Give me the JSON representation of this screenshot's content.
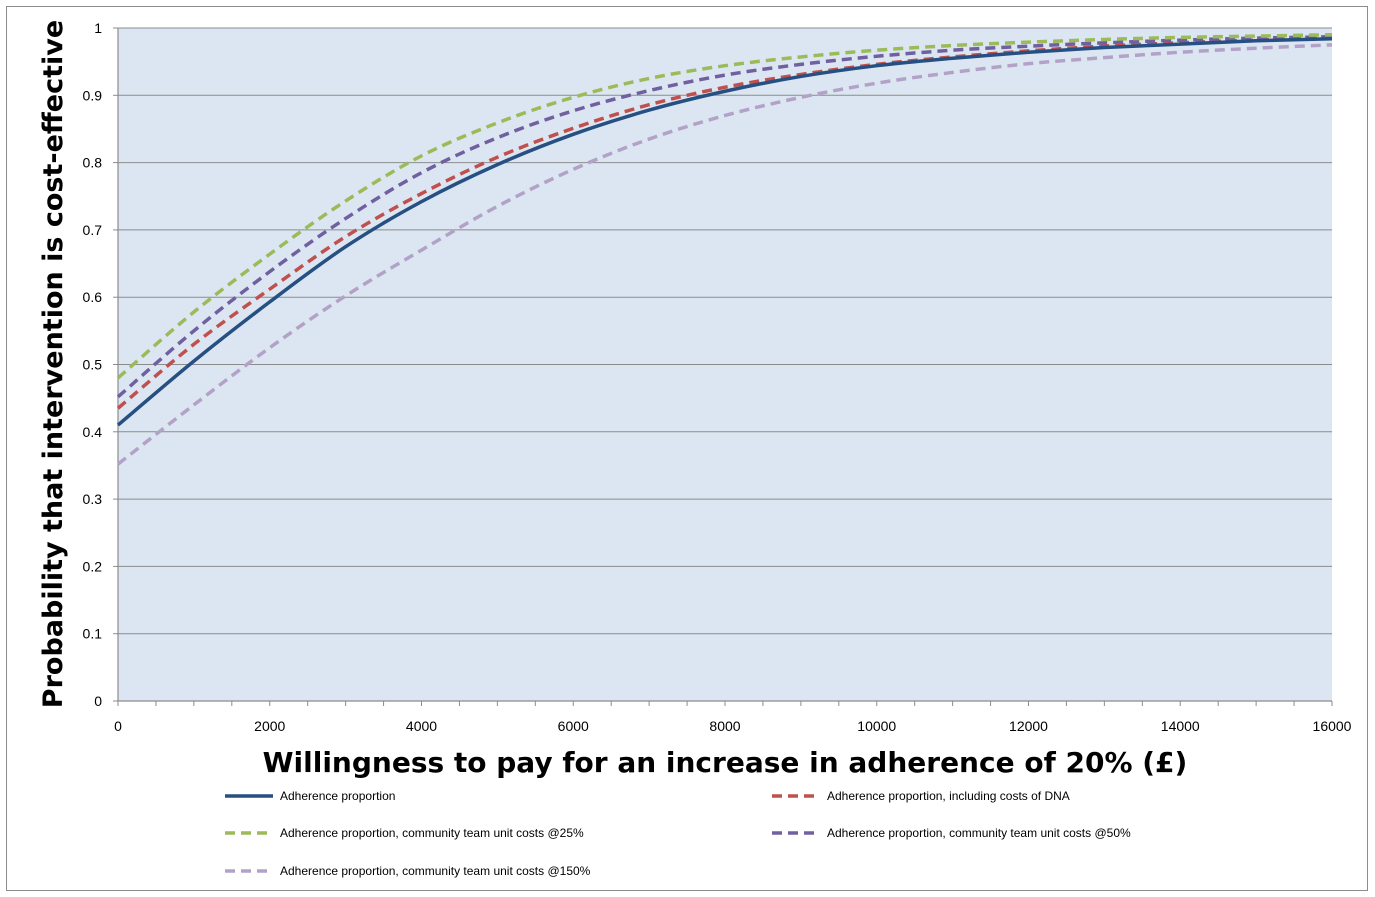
{
  "chart_data": {
    "type": "line",
    "xlabel": "Willingness to pay for an increase in adherence of 20% (£)",
    "ylabel": "Probability that intervention is cost-effective",
    "xlim": [
      0,
      16000
    ],
    "ylim": [
      0,
      1
    ],
    "x_ticks": [
      "0",
      "2000",
      "4000",
      "6000",
      "8000",
      "10000",
      "12000",
      "14000",
      "16000"
    ],
    "y_ticks": [
      "0",
      "0.1",
      "0.2",
      "0.3",
      "0.4",
      "0.5",
      "0.6",
      "0.7",
      "0.8",
      "0.9",
      "1"
    ],
    "grid": "horizontal",
    "plot_background": "#dce6f2",
    "legend_position": "bottom",
    "series": [
      {
        "name": "Adherence proportion",
        "color": "#264f82",
        "style": "solid",
        "x": [
          0,
          1000,
          2000,
          3000,
          4000,
          5000,
          6000,
          7000,
          8000,
          9000,
          10000,
          11000,
          12000,
          13000,
          14000,
          15000,
          16000
        ],
        "values": [
          0.41,
          0.505,
          0.593,
          0.675,
          0.742,
          0.797,
          0.842,
          0.878,
          0.906,
          0.928,
          0.944,
          0.955,
          0.964,
          0.971,
          0.976,
          0.981,
          0.984
        ]
      },
      {
        "name": "Adherence proportion, including costs of DNA",
        "color": "#c0504d",
        "style": "dashed",
        "x": [
          0,
          1000,
          2000,
          3000,
          4000,
          5000,
          6000,
          7000,
          8000,
          9000,
          10000,
          11000,
          12000,
          13000,
          14000,
          15000,
          16000
        ],
        "values": [
          0.435,
          0.53,
          0.612,
          0.69,
          0.754,
          0.808,
          0.851,
          0.886,
          0.912,
          0.931,
          0.946,
          0.957,
          0.966,
          0.973,
          0.978,
          0.982,
          0.985
        ]
      },
      {
        "name": "Adherence proportion, community team unit costs @25%",
        "color": "#9bbb59",
        "style": "dashed",
        "x": [
          0,
          1000,
          2000,
          3000,
          4000,
          5000,
          6000,
          7000,
          8000,
          9000,
          10000,
          11000,
          12000,
          13000,
          14000,
          15000,
          16000
        ],
        "values": [
          0.48,
          0.578,
          0.664,
          0.743,
          0.81,
          0.859,
          0.897,
          0.925,
          0.944,
          0.957,
          0.967,
          0.974,
          0.979,
          0.983,
          0.986,
          0.988,
          0.99
        ]
      },
      {
        "name": "Adherence proportion, community team unit costs @50%",
        "color": "#7060a0",
        "style": "dashed",
        "x": [
          0,
          1000,
          2000,
          3000,
          4000,
          5000,
          6000,
          7000,
          8000,
          9000,
          10000,
          11000,
          12000,
          13000,
          14000,
          15000,
          16000
        ],
        "values": [
          0.452,
          0.55,
          0.638,
          0.717,
          0.785,
          0.837,
          0.877,
          0.907,
          0.93,
          0.946,
          0.958,
          0.967,
          0.973,
          0.978,
          0.982,
          0.985,
          0.987
        ]
      },
      {
        "name": "Adherence proportion, community team unit costs @150%",
        "color": "#b3a2c7",
        "style": "dashed",
        "x": [
          0,
          1000,
          2000,
          3000,
          4000,
          5000,
          6000,
          7000,
          8000,
          9000,
          10000,
          11000,
          12000,
          13000,
          14000,
          15000,
          16000
        ],
        "values": [
          0.352,
          0.44,
          0.525,
          0.602,
          0.67,
          0.735,
          0.79,
          0.835,
          0.87,
          0.897,
          0.918,
          0.934,
          0.947,
          0.956,
          0.964,
          0.97,
          0.975
        ]
      }
    ]
  }
}
